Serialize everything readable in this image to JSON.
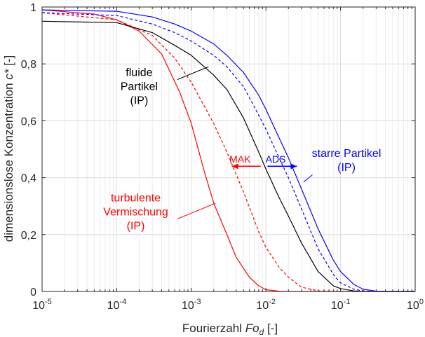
{
  "chart_data": {
    "type": "line",
    "xscale": "log",
    "xlim": [
      1e-05,
      1
    ],
    "ylim": [
      0,
      1
    ],
    "grid": true,
    "xlabel": {
      "pre": "Fourierzahl ",
      "var": "Fo",
      "sub": "d",
      "post": " [-]"
    },
    "ylabel": {
      "pre": "dimensionslose Konzentration ",
      "var": "c*",
      "post": " [-]"
    },
    "xticks": [
      {
        "base": "10",
        "exp": "-5",
        "value": 1e-05
      },
      {
        "base": "10",
        "exp": "-4",
        "value": 0.0001
      },
      {
        "base": "10",
        "exp": "-3",
        "value": 0.001
      },
      {
        "base": "10",
        "exp": "-2",
        "value": 0.01
      },
      {
        "base": "10",
        "exp": "-1",
        "value": 0.1
      },
      {
        "base": "10",
        "exp": "0",
        "value": 1
      }
    ],
    "yticks": [
      {
        "label": "0",
        "value": 0
      },
      {
        "label": "0,2",
        "value": 0.2
      },
      {
        "label": "0,4",
        "value": 0.4
      },
      {
        "label": "0,6",
        "value": 0.6
      },
      {
        "label": "0,8",
        "value": 0.8
      },
      {
        "label": "1",
        "value": 1
      }
    ],
    "series": [
      {
        "id": "turbulent-solid",
        "color": "#ff0000",
        "dash": "solid",
        "x": [
          1e-05,
          5e-05,
          0.0001,
          0.0002,
          0.0004,
          0.0007,
          0.001,
          0.0015,
          0.002,
          0.003,
          0.004,
          0.006,
          0.008,
          0.01,
          0.015,
          0.02,
          0.03,
          0.1,
          1
        ],
        "y": [
          0.99,
          0.975,
          0.955,
          0.915,
          0.835,
          0.7,
          0.59,
          0.42,
          0.31,
          0.2,
          0.12,
          0.05,
          0.02,
          0.006,
          0.001,
          0,
          0,
          0,
          0
        ]
      },
      {
        "id": "turbulent-dashed",
        "color": "#ff0000",
        "dash": "dashed",
        "x": [
          1e-05,
          0.0001,
          0.0003,
          0.0006,
          0.001,
          0.002,
          0.003,
          0.005,
          0.008,
          0.01,
          0.015,
          0.02,
          0.03,
          0.05,
          0.1,
          0.2,
          1
        ],
        "y": [
          0.98,
          0.955,
          0.9,
          0.82,
          0.735,
          0.59,
          0.49,
          0.35,
          0.21,
          0.155,
          0.085,
          0.05,
          0.015,
          0.002,
          0,
          0,
          0
        ]
      },
      {
        "id": "fluide-partikel",
        "color": "#000000",
        "dash": "solid",
        "x": [
          1e-05,
          0.0001,
          0.0003,
          0.0006,
          0.001,
          0.002,
          0.003,
          0.005,
          0.008,
          0.01,
          0.015,
          0.02,
          0.03,
          0.05,
          0.08,
          0.1,
          0.15,
          0.2,
          0.3,
          1
        ],
        "y": [
          0.95,
          0.945,
          0.91,
          0.865,
          0.83,
          0.76,
          0.71,
          0.61,
          0.49,
          0.43,
          0.33,
          0.265,
          0.17,
          0.07,
          0.02,
          0.01,
          0.002,
          0,
          0,
          0
        ]
      },
      {
        "id": "starre-dashed",
        "color": "#0000ff",
        "dash": "dashed",
        "x": [
          1e-05,
          0.0001,
          0.0003,
          0.0006,
          0.001,
          0.002,
          0.003,
          0.005,
          0.008,
          0.01,
          0.015,
          0.02,
          0.03,
          0.05,
          0.08,
          0.1,
          0.15,
          0.2,
          0.3,
          1
        ],
        "y": [
          0.98,
          0.97,
          0.94,
          0.91,
          0.88,
          0.83,
          0.79,
          0.72,
          0.62,
          0.57,
          0.47,
          0.4,
          0.29,
          0.15,
          0.06,
          0.03,
          0.008,
          0.002,
          0,
          0
        ]
      },
      {
        "id": "starre-partikel",
        "color": "#0000ff",
        "dash": "solid",
        "x": [
          1e-05,
          0.0001,
          0.0003,
          0.0006,
          0.001,
          0.002,
          0.003,
          0.005,
          0.008,
          0.01,
          0.015,
          0.02,
          0.03,
          0.05,
          0.08,
          0.1,
          0.15,
          0.2,
          0.3,
          0.5,
          1
        ],
        "y": [
          0.99,
          0.985,
          0.965,
          0.94,
          0.915,
          0.87,
          0.83,
          0.77,
          0.69,
          0.64,
          0.54,
          0.47,
          0.36,
          0.22,
          0.11,
          0.07,
          0.025,
          0.008,
          0.001,
          0,
          0
        ]
      }
    ],
    "annotations": [
      {
        "id": "fluide",
        "color": "#000000",
        "lines": [
          "fluide",
          "Partikel",
          "(IP)"
        ],
        "x": 0.0002,
        "y": 0.72,
        "pointer": {
          "from": [
            0.00065,
            0.745
          ],
          "to": [
            0.0017,
            0.79
          ]
        }
      },
      {
        "id": "starre",
        "color": "#0000ff",
        "lines": [
          "starre Partikel",
          "(IP)"
        ],
        "x": 0.12,
        "y": 0.46,
        "pointer": {
          "from": [
            0.042,
            0.41
          ],
          "to": [
            0.032,
            0.385
          ]
        }
      },
      {
        "id": "turbulente",
        "color": "#ff0000",
        "lines": [
          "turbulente",
          "Vermischung",
          "(IP)"
        ],
        "x": 0.00018,
        "y": 0.28,
        "pointer": {
          "from": [
            0.00065,
            0.255
          ],
          "to": [
            0.0021,
            0.31
          ]
        }
      },
      {
        "id": "mak",
        "color": "#ff0000",
        "lines": [
          "MAK"
        ],
        "x": 0.0045,
        "y": 0.465
      },
      {
        "id": "ads",
        "color": "#0000ff",
        "lines": [
          "ADS"
        ],
        "x": 0.0135,
        "y": 0.465
      }
    ],
    "arrows": [
      {
        "id": "mak-arrow",
        "color": "#ff0000",
        "from": [
          0.0085,
          0.44
        ],
        "to": [
          0.0035,
          0.44
        ]
      },
      {
        "id": "ads-arrow",
        "color": "#0000ff",
        "from": [
          0.0105,
          0.44
        ],
        "to": [
          0.026,
          0.44
        ]
      }
    ]
  }
}
